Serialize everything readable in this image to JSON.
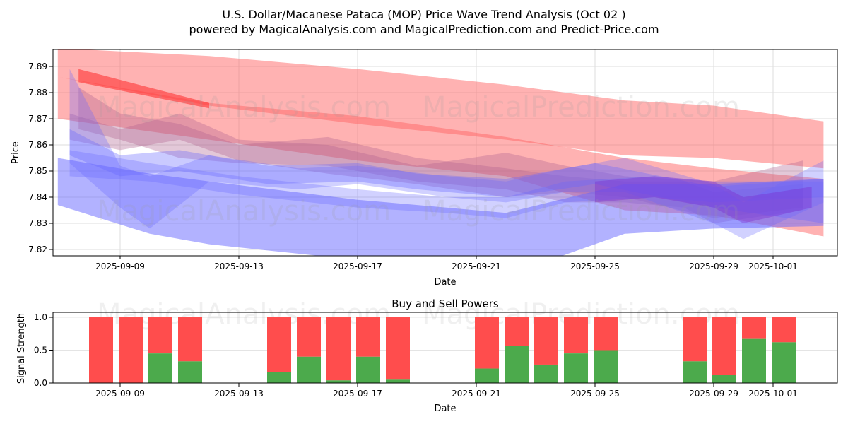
{
  "chart_data": [
    {
      "type": "area",
      "title": "U.S. Dollar/Macanese Pataca (MOP) Price Wave Trend Analysis (Oct 02 )",
      "subtitle": "powered by MagicalAnalysis.com and MagicalPrediction.com and Predict-Price.com",
      "xlabel": "Date",
      "ylabel": "Price",
      "ylim": [
        7.8176,
        7.8965
      ],
      "grid": true,
      "x_ticks": [
        "2025-09-09",
        "2025-09-13",
        "2025-09-17",
        "2025-09-21",
        "2025-09-25",
        "2025-09-29",
        "2025-10-01"
      ],
      "x_tick_days": [
        9,
        13,
        17,
        21,
        25,
        29,
        31
      ],
      "y_ticks": [
        "7.82",
        "7.83",
        "7.84",
        "7.85",
        "7.86",
        "7.87",
        "7.88",
        "7.89"
      ],
      "watermarks": [
        "MagicalAnalysis.com",
        "MagicalPrediction.com"
      ],
      "bands": [
        {
          "color": "#ff6666",
          "opacity": 0.5,
          "points": [
            [
              6.9,
              7.886,
              7.897
            ],
            [
              12,
              7.875,
              7.894
            ],
            [
              17,
              7.868,
              7.889
            ],
            [
              22,
              7.862,
              7.883
            ],
            [
              26,
              7.856,
              7.877
            ],
            [
              29,
              7.855,
              7.875
            ],
            [
              32.7,
              7.851,
              7.869
            ]
          ]
        },
        {
          "color": "#ff6666",
          "opacity": 0.5,
          "points": [
            [
              6.9,
              7.87,
              7.886
            ],
            [
              12,
              7.862,
              7.876
            ],
            [
              17,
              7.854,
              7.871
            ],
            [
              22,
              7.848,
              7.863
            ],
            [
              26,
              7.835,
              7.855
            ],
            [
              29,
              7.833,
              7.851
            ],
            [
              32.7,
              7.825,
              7.847
            ]
          ]
        },
        {
          "color": "#ff3333",
          "opacity": 0.6,
          "points": [
            [
              7.6,
              7.884,
              7.889
            ],
            [
              12,
              7.874,
              7.876
            ]
          ]
        },
        {
          "color": "#b06090",
          "opacity": 0.35,
          "points": [
            [
              7.6,
              7.866,
              7.882
            ],
            [
              9,
              7.862,
              7.872
            ],
            [
              11,
              7.855,
              7.868
            ],
            [
              13,
              7.853,
              7.86
            ],
            [
              16,
              7.852,
              7.863
            ],
            [
              19,
              7.846,
              7.855
            ],
            [
              22,
              7.843,
              7.851
            ],
            [
              24,
              7.838,
              7.848
            ],
            [
              26,
              7.838,
              7.846
            ],
            [
              28,
              7.836,
              7.846
            ],
            [
              29,
              7.83,
              7.842
            ],
            [
              32,
              7.835,
              7.845
            ]
          ]
        },
        {
          "color": "#b06090",
          "opacity": 0.35,
          "points": [
            [
              7.3,
              7.862,
              7.872
            ],
            [
              9,
              7.858,
              7.866
            ],
            [
              11,
              7.862,
              7.872
            ],
            [
              13,
              7.854,
              7.862
            ],
            [
              16,
              7.849,
              7.86
            ],
            [
              19,
              7.845,
              7.852
            ],
            [
              22,
              7.84,
              7.857
            ],
            [
              24,
              7.842,
              7.852
            ],
            [
              26,
              7.84,
              7.848
            ],
            [
              29,
              7.832,
              7.846
            ],
            [
              32,
              7.836,
              7.854
            ]
          ]
        },
        {
          "color": "#6666ff",
          "opacity": 0.35,
          "points": [
            [
              7.3,
              7.856,
              7.866
            ],
            [
              9,
              7.848,
              7.856
            ],
            [
              11,
              7.85,
              7.858
            ],
            [
              14,
              7.845,
              7.852
            ],
            [
              17,
              7.846,
              7.853
            ],
            [
              19,
              7.843,
              7.849
            ],
            [
              22,
              7.84,
              7.847
            ],
            [
              25,
              7.845,
              7.853
            ],
            [
              29,
              7.836,
              7.844
            ],
            [
              32.7,
              7.83,
              7.847
            ]
          ]
        },
        {
          "color": "#6666ff",
          "opacity": 0.3,
          "points": [
            [
              7.3,
              7.853,
              7.889
            ],
            [
              9,
              7.836,
              7.852
            ],
            [
              10,
              7.828,
              7.848
            ],
            [
              12,
              7.846,
              7.856
            ],
            [
              15,
              7.843,
              7.851
            ],
            [
              17,
              7.845,
              7.852
            ],
            [
              20,
              7.84,
              7.848
            ],
            [
              22,
              7.838,
              7.846
            ],
            [
              24,
              7.842,
              7.851
            ],
            [
              26,
              7.842,
              7.855
            ],
            [
              29,
              7.83,
              7.845
            ],
            [
              30,
              7.824,
              7.838
            ],
            [
              32.7,
              7.838,
              7.854
            ]
          ]
        },
        {
          "color": "#6666ff",
          "opacity": 0.3,
          "points": [
            [
              7.3,
              7.848,
              7.858
            ],
            [
              10,
              7.846,
              7.853
            ],
            [
              13,
              7.841,
              7.848
            ],
            [
              17,
              7.836,
              7.843
            ],
            [
              20,
              7.834,
              7.84
            ],
            [
              22,
              7.832,
              7.84
            ],
            [
              24,
              7.838,
              7.846
            ],
            [
              27,
              7.84,
              7.848
            ],
            [
              29,
              7.838,
              7.846
            ],
            [
              32.7,
              7.84,
              7.846
            ]
          ]
        },
        {
          "color": "#6666ff",
          "opacity": 0.5,
          "points": [
            [
              6.9,
              7.837,
              7.855
            ],
            [
              10,
              7.826,
              7.849
            ],
            [
              12,
              7.822,
              7.846
            ],
            [
              17,
              7.816,
              7.839
            ],
            [
              22,
              7.81,
              7.834
            ],
            [
              26,
              7.826,
              7.845
            ],
            [
              29,
              7.828,
              7.845
            ],
            [
              32.7,
              7.829,
              7.847
            ]
          ]
        },
        {
          "color": "#7a22cc",
          "opacity": 0.35,
          "points": [
            [
              25,
              7.838,
              7.846
            ],
            [
              27,
              7.84,
              7.848
            ],
            [
              29,
              7.836,
              7.846
            ],
            [
              30,
              7.83,
              7.84
            ],
            [
              32.3,
              7.836,
              7.844
            ]
          ]
        }
      ]
    },
    {
      "type": "bar",
      "title": "Buy and Sell Powers",
      "xlabel": "Date",
      "ylabel": "Signal Strength",
      "ylim": [
        0,
        1.05
      ],
      "y_ticks": [
        "0.0",
        "0.5",
        "1.0"
      ],
      "x_ticks": [
        "2025-09-09",
        "2025-09-13",
        "2025-09-17",
        "2025-09-21",
        "2025-09-25",
        "2025-09-29",
        "2025-10-01"
      ],
      "x_tick_days": [
        9,
        13,
        17,
        21,
        25,
        29,
        31
      ],
      "buy_color": "#4caa4c",
      "sell_color": "#ff4d4d",
      "categories": [
        "2025-09-08",
        "2025-09-09",
        "2025-09-10",
        "2025-09-11",
        "2025-09-14",
        "2025-09-15",
        "2025-09-16",
        "2025-09-17",
        "2025-09-18",
        "2025-09-21",
        "2025-09-22",
        "2025-09-23",
        "2025-09-24",
        "2025-09-25",
        "2025-09-28",
        "2025-09-29",
        "2025-09-30",
        "2025-10-01"
      ],
      "days": [
        8,
        9,
        10,
        11,
        14,
        15,
        16,
        17,
        18,
        21,
        22,
        23,
        24,
        25,
        28,
        29,
        30,
        31
      ],
      "buy": [
        0,
        0,
        0.45,
        0.33,
        0.17,
        0.4,
        0.04,
        0.4,
        0.05,
        0.22,
        0.56,
        0.28,
        0.45,
        0.5,
        0.33,
        0.12,
        0.67,
        0.62
      ],
      "sell": [
        1,
        1,
        0.55,
        0.67,
        0.83,
        0.6,
        0.96,
        0.6,
        0.95,
        0.78,
        0.44,
        0.72,
        0.55,
        0.5,
        0.67,
        0.88,
        0.33,
        0.38
      ]
    }
  ]
}
